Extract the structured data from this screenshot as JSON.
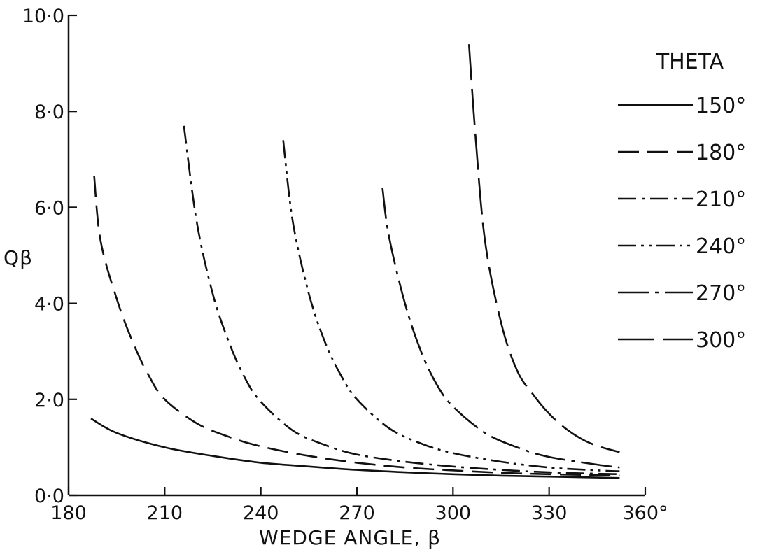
{
  "chart_data": {
    "type": "line",
    "title": "",
    "xlabel": "WEDGE ANGLE, β",
    "ylabel": "Qβ",
    "xlim": [
      180,
      360
    ],
    "ylim": [
      0,
      10
    ],
    "x_ticks": [
      "180",
      "210",
      "240",
      "270",
      "300",
      "330",
      "360°"
    ],
    "y_ticks": [
      "0·0",
      "2·0",
      "4·0",
      "6·0",
      "8·0",
      "10·0"
    ],
    "grid": false,
    "legend_title": "THETA",
    "legend_position": "right",
    "series": [
      {
        "name": "150°",
        "dash": "solid",
        "x": [
          187,
          195,
          210,
          225,
          240,
          255,
          270,
          285,
          300,
          315,
          330,
          345,
          352
        ],
        "y": [
          1.6,
          1.3,
          1.0,
          0.82,
          0.68,
          0.6,
          0.53,
          0.48,
          0.44,
          0.41,
          0.39,
          0.37,
          0.36
        ]
      },
      {
        "name": "180°",
        "dash": "dash",
        "x": [
          188,
          190,
          195,
          200,
          205,
          210,
          220,
          230,
          240,
          255,
          270,
          285,
          300,
          315,
          330,
          345,
          352
        ],
        "y": [
          6.65,
          5.3,
          4.1,
          3.2,
          2.5,
          2.0,
          1.5,
          1.22,
          1.02,
          0.82,
          0.68,
          0.58,
          0.52,
          0.47,
          0.44,
          0.42,
          0.41
        ]
      },
      {
        "name": "210°",
        "dash": "dashdot",
        "x": [
          216,
          220,
          225,
          230,
          235,
          240,
          250,
          260,
          270,
          285,
          300,
          315,
          330,
          345,
          352
        ],
        "y": [
          7.7,
          5.7,
          4.2,
          3.2,
          2.45,
          1.95,
          1.35,
          1.05,
          0.85,
          0.7,
          0.6,
          0.53,
          0.48,
          0.45,
          0.44
        ]
      },
      {
        "name": "240°",
        "dash": "dashdotdot",
        "x": [
          247,
          250,
          255,
          260,
          265,
          270,
          280,
          290,
          300,
          315,
          330,
          345,
          352
        ],
        "y": [
          7.4,
          5.7,
          4.2,
          3.2,
          2.5,
          2.0,
          1.4,
          1.08,
          0.88,
          0.7,
          0.58,
          0.52,
          0.5
        ]
      },
      {
        "name": "270°",
        "dash": "longdashdot",
        "x": [
          278,
          280,
          285,
          290,
          295,
          300,
          310,
          320,
          330,
          345,
          352
        ],
        "y": [
          6.4,
          5.4,
          4.0,
          3.0,
          2.3,
          1.85,
          1.3,
          1.0,
          0.8,
          0.64,
          0.58
        ]
      },
      {
        "name": "300°",
        "dash": "longdash",
        "x": [
          305,
          307,
          310,
          315,
          320,
          325,
          330,
          335,
          340,
          345,
          352
        ],
        "y": [
          9.4,
          7.5,
          5.3,
          3.6,
          2.6,
          2.1,
          1.7,
          1.4,
          1.18,
          1.03,
          0.9
        ]
      }
    ]
  }
}
